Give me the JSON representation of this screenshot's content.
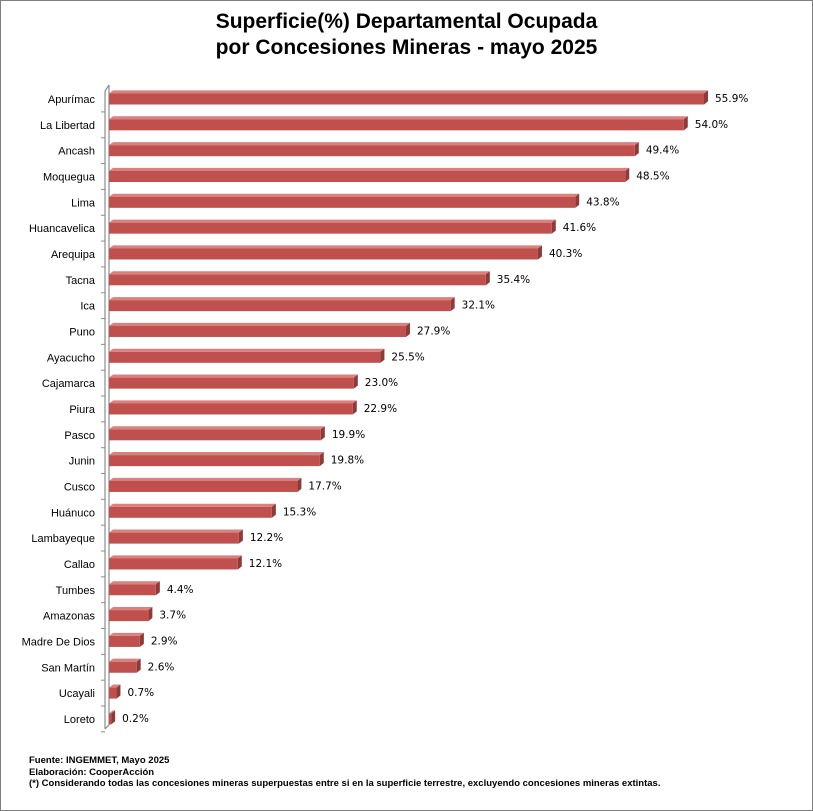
{
  "chart_data": {
    "type": "bar",
    "orientation": "horizontal",
    "title_line1": "Superficie(%) Departamental Ocupada",
    "title_line2": "por Concesiones Mineras - mayo 2025",
    "categories": [
      "Apurímac",
      "La Libertad",
      "Ancash",
      "Moquegua",
      "Lima",
      "Huancavelica",
      "Arequipa",
      "Tacna",
      "Ica",
      "Puno",
      "Ayacucho",
      "Cajamarca",
      "Piura",
      "Pasco",
      "Junin",
      "Cusco",
      "Huánuco",
      "Lambayeque",
      "Callao",
      "Tumbes",
      "Amazonas",
      "Madre De Dios",
      "San Martín",
      "Ucayali",
      "Loreto"
    ],
    "values": [
      55.9,
      54.0,
      49.4,
      48.5,
      43.8,
      41.6,
      40.3,
      35.4,
      32.1,
      27.9,
      25.5,
      23.0,
      22.9,
      19.9,
      19.8,
      17.7,
      15.3,
      12.2,
      12.1,
      4.4,
      3.7,
      2.9,
      2.6,
      0.7,
      0.2
    ],
    "unit": "%",
    "xlim": [
      0,
      56
    ],
    "bar_color": "#c0504d",
    "grid": false
  },
  "notes": {
    "source": "Fuente: INGEMMET, Mayo 2025",
    "elaboration": "Elaboración: CooperAcción",
    "footnote": "(*) Considerando todas las concesiones mineras superpuestas entre si en la superficie terrestre, excluyendo concesiones mineras extintas."
  }
}
